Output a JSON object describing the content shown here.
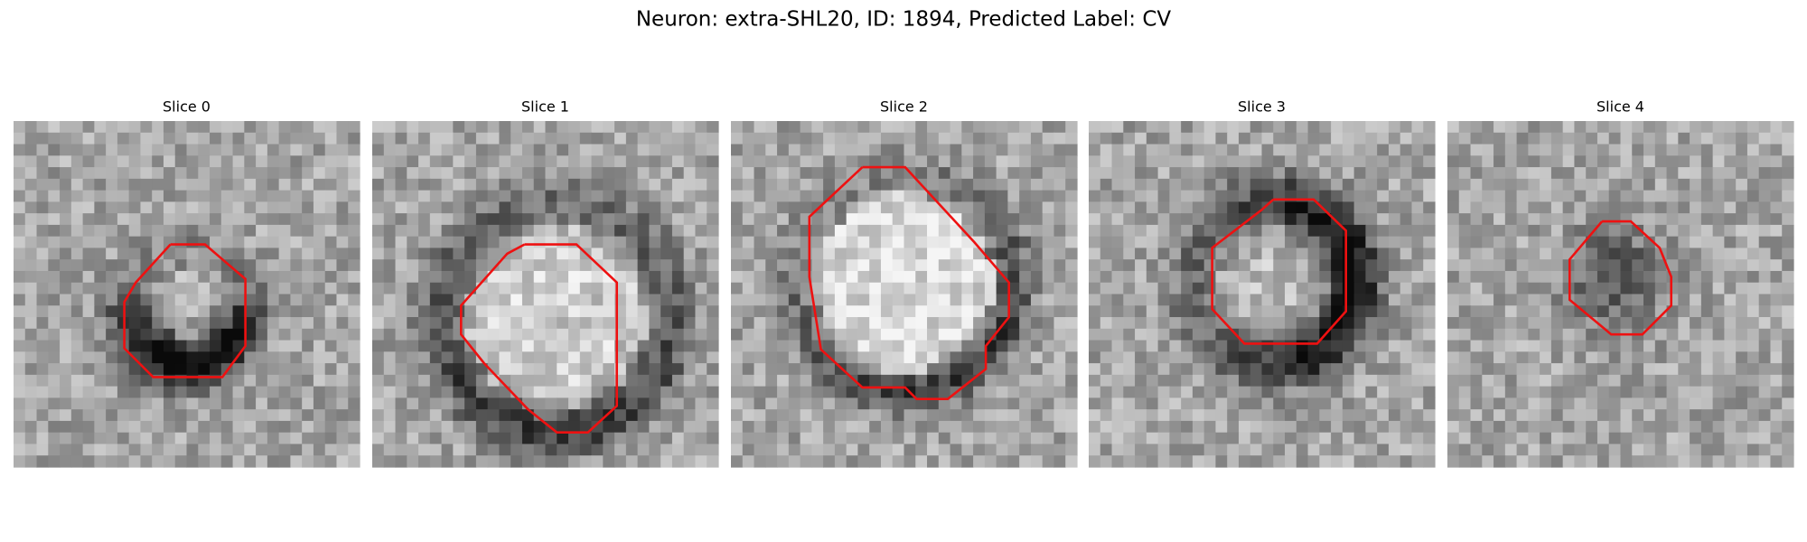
{
  "title": "Neuron: extra-SHL20, ID: 1894, Predicted Label: CV",
  "panels": [
    {
      "title": "Slice 0"
    },
    {
      "title": "Slice 1"
    },
    {
      "title": "Slice 2"
    },
    {
      "title": "Slice 3"
    },
    {
      "title": "Slice 4"
    }
  ]
}
